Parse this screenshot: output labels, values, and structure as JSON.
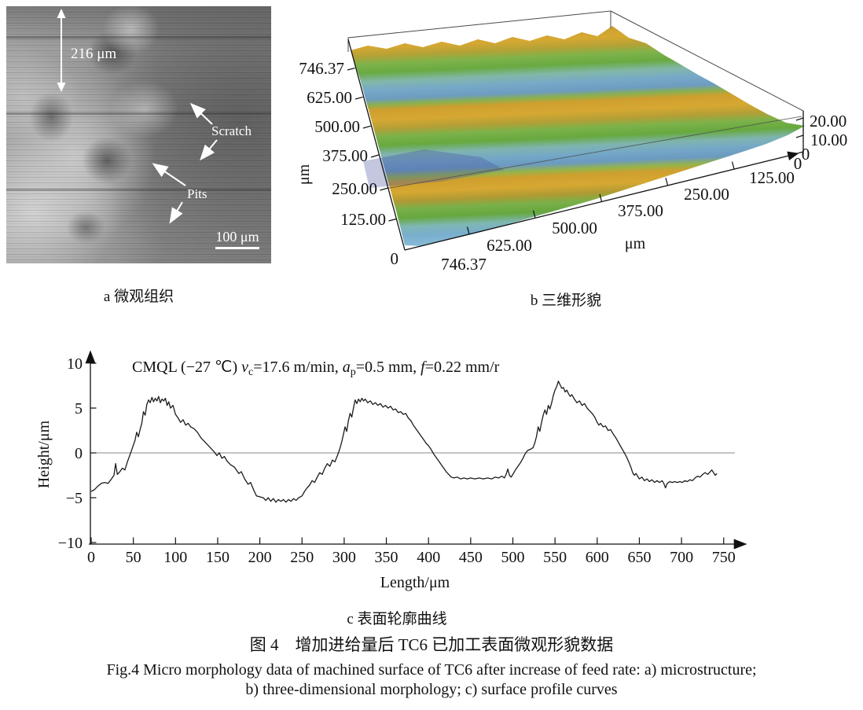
{
  "panel_a": {
    "caption": "a 微观组织",
    "depth_label": "216 μm",
    "scratch_label": "Scratch",
    "pits_label": "Pits",
    "scalebar_label": "100 μm"
  },
  "panel_b": {
    "caption": "b 三维形貌",
    "left_axis_unit": "μm",
    "bottom_axis_unit": "μm"
  },
  "panel_c": {
    "caption": "c 表面轮廓曲线",
    "annotation": {
      "p0": "CMQL (−27 ℃) ",
      "v": "v",
      "v_sub": "c",
      "p1": "=17.6 m/min, ",
      "a": "a",
      "a_sub": "p",
      "p2": "=0.5 mm, ",
      "f": "f",
      "p3": "=0.22 mm/r"
    }
  },
  "figure_caption": {
    "zh": "图 4　增加进给量后 TC6 已加工表面微观形貌数据",
    "en_line1": "Fig.4 Micro morphology data of machined surface of TC6 after increase of feed rate: a) microstructure;",
    "en_line2": "b) three-dimensional morphology; c) surface profile curves"
  },
  "colors": {
    "ridge_yellow": "#d0a030",
    "green": "#6fae45",
    "valley_blue": "#74a9c8",
    "teal": "#7fb8ba",
    "dark_patch": "#44519f"
  },
  "chart_data": [
    {
      "type": "line",
      "name": "surface-profile-curve",
      "annotation": "CMQL (−27 ℃) vc=17.6 m/min, ap=0.5 mm, f=0.22 mm/r",
      "xlabel": "Length/μm",
      "ylabel": "Height/μm",
      "xlim": [
        0,
        750
      ],
      "ylim": [
        -10,
        10
      ],
      "x_tick_labels": [
        "0",
        "50",
        "100",
        "150",
        "200",
        "250",
        "300",
        "350",
        "400",
        "450",
        "500",
        "550",
        "600",
        "650",
        "700",
        "750"
      ],
      "y_tick_labels": [
        "10",
        "5",
        "0",
        "−5",
        "−10"
      ],
      "zero_line": true,
      "points": [
        [
          0,
          -4.3
        ],
        [
          4,
          -4.1
        ],
        [
          8,
          -3.7
        ],
        [
          12,
          -3.4
        ],
        [
          16,
          -3.3
        ],
        [
          20,
          -3.4
        ],
        [
          24,
          -2.9
        ],
        [
          27,
          -2.5
        ],
        [
          29,
          -1.2
        ],
        [
          31,
          -2.4
        ],
        [
          34,
          -2.1
        ],
        [
          37,
          -1.7
        ],
        [
          40,
          -1.9
        ],
        [
          43,
          -1.0
        ],
        [
          46,
          -0.2
        ],
        [
          49,
          0.6
        ],
        [
          52,
          1.4
        ],
        [
          54,
          2.3
        ],
        [
          56,
          1.8
        ],
        [
          58,
          2.6
        ],
        [
          60,
          3.3
        ],
        [
          62,
          4.6
        ],
        [
          64,
          4.2
        ],
        [
          66,
          5.4
        ],
        [
          68,
          5.9
        ],
        [
          70,
          5.6
        ],
        [
          72,
          6.2
        ],
        [
          74,
          5.7
        ],
        [
          76,
          6.1
        ],
        [
          78,
          5.8
        ],
        [
          80,
          6.3
        ],
        [
          82,
          5.6
        ],
        [
          84,
          6.0
        ],
        [
          86,
          5.8
        ],
        [
          88,
          6.1
        ],
        [
          90,
          5.3
        ],
        [
          92,
          5.7
        ],
        [
          94,
          5.0
        ],
        [
          97,
          5.3
        ],
        [
          100,
          4.3
        ],
        [
          103,
          3.9
        ],
        [
          106,
          3.4
        ],
        [
          109,
          3.7
        ],
        [
          112,
          3.1
        ],
        [
          115,
          3.3
        ],
        [
          118,
          2.9
        ],
        [
          122,
          2.7
        ],
        [
          126,
          2.3
        ],
        [
          130,
          1.7
        ],
        [
          134,
          1.3
        ],
        [
          138,
          0.9
        ],
        [
          142,
          0.5
        ],
        [
          146,
          0.1
        ],
        [
          149,
          -0.3
        ],
        [
          152,
          0.0
        ],
        [
          155,
          -0.6
        ],
        [
          158,
          -0.4
        ],
        [
          161,
          -0.9
        ],
        [
          165,
          -1.3
        ],
        [
          170,
          -1.6
        ],
        [
          175,
          -2.3
        ],
        [
          178,
          -2.1
        ],
        [
          182,
          -2.9
        ],
        [
          186,
          -3.5
        ],
        [
          189,
          -3.3
        ],
        [
          193,
          -4.2
        ],
        [
          196,
          -4.8
        ],
        [
          200,
          -4.9
        ],
        [
          204,
          -5.0
        ],
        [
          207,
          -5.3
        ],
        [
          210,
          -5.0
        ],
        [
          213,
          -5.4
        ],
        [
          216,
          -5.1
        ],
        [
          219,
          -5.5
        ],
        [
          222,
          -5.2
        ],
        [
          225,
          -5.4
        ],
        [
          228,
          -5.2
        ],
        [
          231,
          -5.5
        ],
        [
          234,
          -5.2
        ],
        [
          237,
          -5.4
        ],
        [
          240,
          -5.1
        ],
        [
          243,
          -5.3
        ],
        [
          246,
          -5.0
        ],
        [
          250,
          -4.8
        ],
        [
          253,
          -4.3
        ],
        [
          256,
          -3.9
        ],
        [
          259,
          -3.6
        ],
        [
          262,
          -3.1
        ],
        [
          265,
          -3.3
        ],
        [
          268,
          -2.7
        ],
        [
          271,
          -2.2
        ],
        [
          274,
          -2.4
        ],
        [
          277,
          -1.7
        ],
        [
          280,
          -1.2
        ],
        [
          283,
          -1.5
        ],
        [
          286,
          -0.8
        ],
        [
          289,
          -1.0
        ],
        [
          292,
          -0.3
        ],
        [
          295,
          0.5
        ],
        [
          297,
          1.2
        ],
        [
          299,
          2.0
        ],
        [
          301,
          2.9
        ],
        [
          303,
          2.4
        ],
        [
          305,
          3.6
        ],
        [
          307,
          4.4
        ],
        [
          309,
          4.0
        ],
        [
          311,
          5.0
        ],
        [
          313,
          5.9
        ],
        [
          315,
          5.5
        ],
        [
          317,
          6.0
        ],
        [
          319,
          5.7
        ],
        [
          321,
          6.1
        ],
        [
          323,
          5.8
        ],
        [
          325,
          6.0
        ],
        [
          328,
          5.6
        ],
        [
          331,
          5.8
        ],
        [
          334,
          5.4
        ],
        [
          337,
          5.6
        ],
        [
          340,
          5.3
        ],
        [
          343,
          5.5
        ],
        [
          346,
          5.1
        ],
        [
          349,
          5.3
        ],
        [
          352,
          5.0
        ],
        [
          355,
          5.2
        ],
        [
          358,
          4.8
        ],
        [
          361,
          4.9
        ],
        [
          364,
          4.5
        ],
        [
          367,
          4.6
        ],
        [
          370,
          4.3
        ],
        [
          373,
          4.4
        ],
        [
          376,
          3.9
        ],
        [
          379,
          3.6
        ],
        [
          382,
          3.1
        ],
        [
          385,
          2.7
        ],
        [
          388,
          2.3
        ],
        [
          391,
          1.9
        ],
        [
          394,
          1.5
        ],
        [
          397,
          1.1
        ],
        [
          400,
          0.8
        ],
        [
          403,
          0.4
        ],
        [
          406,
          -0.1
        ],
        [
          409,
          -0.5
        ],
        [
          412,
          -0.9
        ],
        [
          415,
          -1.3
        ],
        [
          418,
          -1.7
        ],
        [
          421,
          -2.1
        ],
        [
          424,
          -2.4
        ],
        [
          427,
          -2.7
        ],
        [
          430,
          -2.8
        ],
        [
          434,
          -2.7
        ],
        [
          438,
          -2.9
        ],
        [
          442,
          -2.8
        ],
        [
          446,
          -2.9
        ],
        [
          450,
          -2.8
        ],
        [
          455,
          -2.9
        ],
        [
          460,
          -2.8
        ],
        [
          465,
          -2.9
        ],
        [
          470,
          -2.8
        ],
        [
          475,
          -2.9
        ],
        [
          479,
          -2.7
        ],
        [
          483,
          -2.8
        ],
        [
          487,
          -2.6
        ],
        [
          490,
          -2.8
        ],
        [
          492,
          -2.4
        ],
        [
          494,
          -1.8
        ],
        [
          496,
          -2.5
        ],
        [
          498,
          -2.7
        ],
        [
          500,
          -2.4
        ],
        [
          503,
          -1.9
        ],
        [
          506,
          -1.5
        ],
        [
          509,
          -1.1
        ],
        [
          512,
          -0.6
        ],
        [
          514,
          -0.2
        ],
        [
          516,
          0.1
        ],
        [
          518,
          0.3
        ],
        [
          521,
          0.4
        ],
        [
          524,
          0.6
        ],
        [
          526,
          1.1
        ],
        [
          528,
          1.8
        ],
        [
          530,
          2.9
        ],
        [
          532,
          2.4
        ],
        [
          534,
          3.4
        ],
        [
          536,
          4.2
        ],
        [
          538,
          4.8
        ],
        [
          540,
          4.3
        ],
        [
          542,
          5.3
        ],
        [
          544,
          4.9
        ],
        [
          546,
          5.6
        ],
        [
          548,
          6.4
        ],
        [
          550,
          7.0
        ],
        [
          552,
          7.4
        ],
        [
          554,
          8.0
        ],
        [
          556,
          7.6
        ],
        [
          558,
          7.2
        ],
        [
          560,
          7.3
        ],
        [
          562,
          6.8
        ],
        [
          564,
          7.0
        ],
        [
          566,
          6.6
        ],
        [
          568,
          6.3
        ],
        [
          570,
          6.5
        ],
        [
          573,
          6.0
        ],
        [
          576,
          5.6
        ],
        [
          579,
          5.8
        ],
        [
          582,
          5.3
        ],
        [
          585,
          5.5
        ],
        [
          588,
          5.0
        ],
        [
          591,
          4.7
        ],
        [
          594,
          4.4
        ],
        [
          597,
          4.0
        ],
        [
          600,
          3.4
        ],
        [
          602,
          3.1
        ],
        [
          604,
          3.3
        ],
        [
          607,
          2.9
        ],
        [
          610,
          3.0
        ],
        [
          613,
          2.5
        ],
        [
          616,
          2.6
        ],
        [
          619,
          2.1
        ],
        [
          622,
          1.7
        ],
        [
          625,
          1.2
        ],
        [
          628,
          0.7
        ],
        [
          631,
          0.2
        ],
        [
          634,
          -0.3
        ],
        [
          637,
          -0.9
        ],
        [
          640,
          -1.6
        ],
        [
          642,
          -2.2
        ],
        [
          644,
          -2.5
        ],
        [
          646,
          -2.3
        ],
        [
          648,
          -2.6
        ],
        [
          650,
          -2.9
        ],
        [
          653,
          -2.7
        ],
        [
          656,
          -3.1
        ],
        [
          659,
          -2.9
        ],
        [
          662,
          -3.2
        ],
        [
          665,
          -3.0
        ],
        [
          668,
          -3.3
        ],
        [
          671,
          -3.1
        ],
        [
          674,
          -3.3
        ],
        [
          677,
          -3.1
        ],
        [
          679,
          -3.4
        ],
        [
          681,
          -3.9
        ],
        [
          683,
          -3.4
        ],
        [
          686,
          -3.2
        ],
        [
          689,
          -3.3
        ],
        [
          692,
          -3.2
        ],
        [
          695,
          -3.3
        ],
        [
          698,
          -3.2
        ],
        [
          701,
          -3.3
        ],
        [
          704,
          -3.1
        ],
        [
          707,
          -3.2
        ],
        [
          710,
          -3.0
        ],
        [
          713,
          -3.1
        ],
        [
          716,
          -2.8
        ],
        [
          719,
          -2.6
        ],
        [
          722,
          -2.7
        ],
        [
          725,
          -2.4
        ],
        [
          728,
          -2.2
        ],
        [
          731,
          -2.4
        ],
        [
          734,
          -2.1
        ],
        [
          736,
          -1.9
        ],
        [
          738,
          -2.2
        ],
        [
          740,
          -2.5
        ],
        [
          742,
          -2.3
        ]
      ]
    },
    {
      "type": "surface3d",
      "name": "three-dimensional-morphology",
      "axis_unit": "μm",
      "depth_tick_labels": [
        "746.37",
        "625.00",
        "500.00",
        "375.00",
        "250.00",
        "125.00"
      ],
      "depth_zero_label": "0",
      "x_tick_labels": [
        "746.37",
        "625.00",
        "500.00",
        "375.00",
        "250.00",
        "125.00",
        "0"
      ],
      "z_tick_labels": [
        "20.00",
        "10.00",
        "0"
      ],
      "x_range": [
        0,
        746.37
      ],
      "depth_range": [
        0,
        746.37
      ],
      "z_range": [
        0,
        20
      ]
    }
  ]
}
